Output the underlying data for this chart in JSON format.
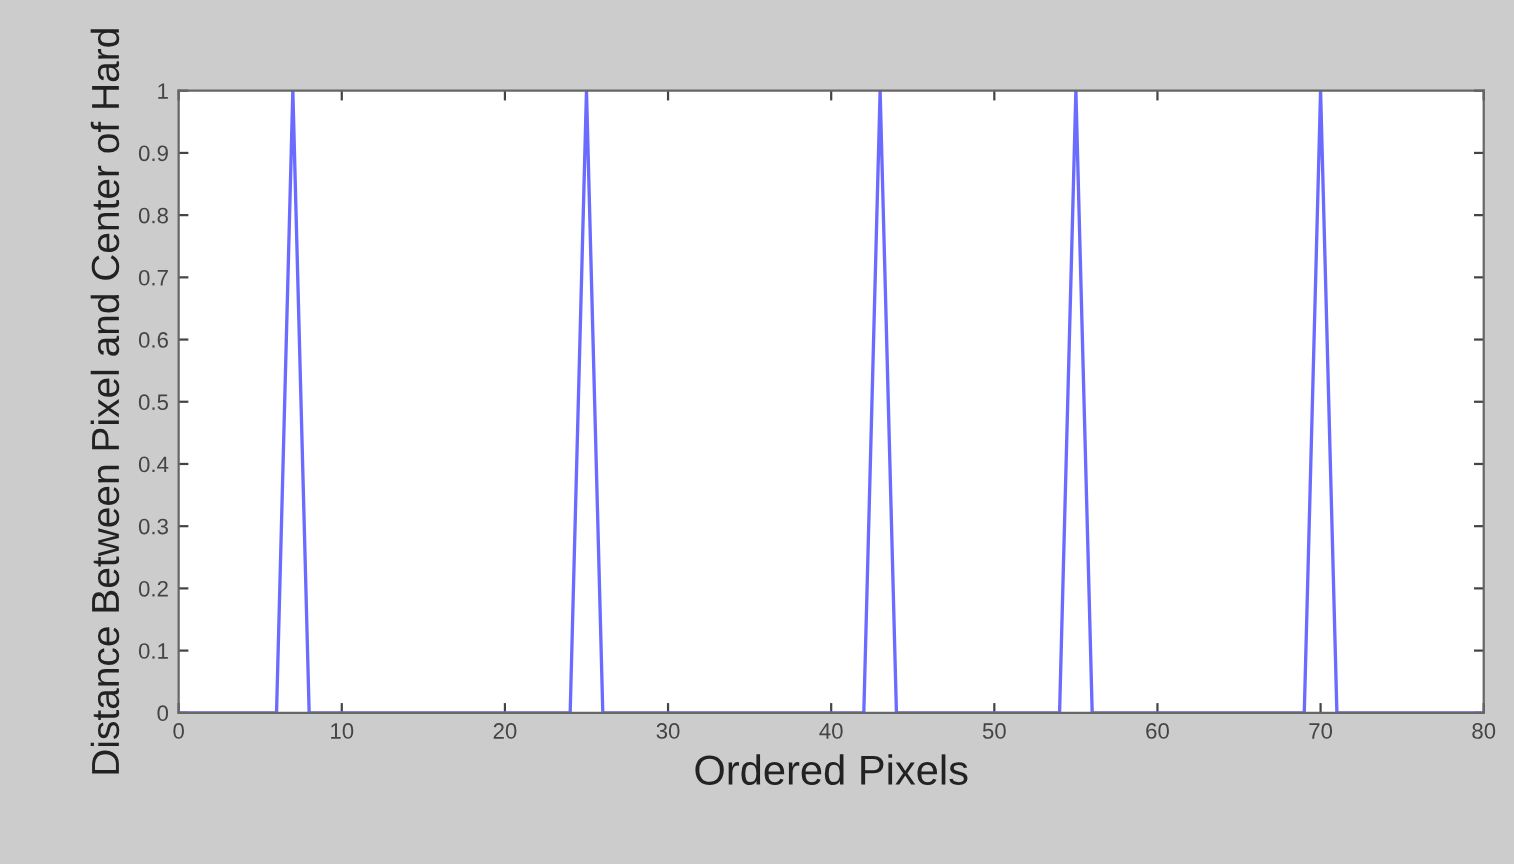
{
  "chart_data": {
    "type": "line",
    "xlabel": "Ordered Pixels",
    "ylabel": "Distance Between Pixel and Center of Hard",
    "x": [
      0,
      6,
      7,
      8,
      24,
      25,
      26,
      42,
      43,
      44,
      54,
      55,
      56,
      69,
      70,
      71,
      80
    ],
    "series": [
      {
        "color": "#6b6bff",
        "values": [
          0,
          0,
          1,
          0,
          0,
          1,
          0,
          0,
          1,
          0,
          0,
          1,
          0,
          0,
          1,
          0,
          0
        ]
      }
    ],
    "xlim": [
      0,
      80
    ],
    "xticks": [
      0,
      10,
      20,
      30,
      40,
      50,
      60,
      70,
      80
    ],
    "ylim": [
      0,
      1
    ],
    "yticks": [
      0,
      0.1,
      0.2,
      0.3,
      0.4,
      0.5,
      0.6,
      0.7,
      0.8,
      0.9,
      1
    ],
    "grid": false,
    "marker": "none",
    "line_style": "solid"
  }
}
